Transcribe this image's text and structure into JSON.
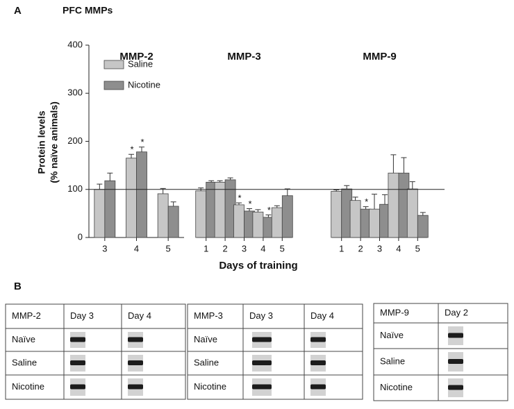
{
  "panel_a_label": "A",
  "panel_b_label": "B",
  "chart_data": {
    "type": "bar",
    "title": "PFC MMPs",
    "ylabel": [
      "Protein levels",
      "(% naïve animals)"
    ],
    "xlabel": "Days of training",
    "ylim": [
      0,
      400
    ],
    "yticks": [
      0,
      100,
      200,
      300,
      400
    ],
    "reference_line": 100,
    "sig_label": "*",
    "legend": [
      {
        "name": "Saline",
        "color": "#c6c6c6"
      },
      {
        "name": "Nicotine",
        "color": "#8e8e8e"
      }
    ],
    "groups": [
      {
        "name": "MMP-2",
        "categories": [
          "3",
          "4",
          "5"
        ],
        "series": [
          {
            "values": [
              100,
              165,
              91
            ],
            "errors": [
              11,
              8,
              11
            ],
            "significant": [
              false,
              true,
              false
            ]
          },
          {
            "values": [
              118,
              178,
              65
            ],
            "errors": [
              16,
              10,
              9
            ],
            "significant": [
              false,
              true,
              false
            ]
          }
        ]
      },
      {
        "name": "MMP-3",
        "categories": [
          "1",
          "2",
          "3",
          "4",
          "5"
        ],
        "series": [
          {
            "values": [
              97,
              115,
              68,
              53,
              62
            ],
            "errors": [
              6,
              3,
              4,
              5,
              4
            ],
            "significant": [
              false,
              false,
              true,
              false,
              false
            ]
          },
          {
            "values": [
              115,
              120,
              55,
              42,
              87
            ],
            "errors": [
              3,
              4,
              5,
              5,
              14
            ],
            "significant": [
              false,
              false,
              true,
              true,
              false
            ]
          }
        ]
      },
      {
        "name": "MMP-9",
        "categories": [
          "1",
          "2",
          "3",
          "4",
          "5"
        ],
        "series": [
          {
            "values": [
              96,
              77,
              59,
              134,
              101
            ],
            "errors": [
              3,
              7,
              31,
              38,
              15
            ],
            "significant": [
              false,
              false,
              false,
              false,
              false
            ]
          },
          {
            "values": [
              101,
              59,
              69,
              134,
              46
            ],
            "errors": [
              7,
              5,
              20,
              32,
              6
            ],
            "significant": [
              false,
              true,
              false,
              false,
              false
            ]
          }
        ]
      }
    ]
  },
  "tables": [
    {
      "header": [
        "MMP-2",
        "Day 3",
        "Day 4"
      ],
      "rows": [
        "Naïve",
        "Saline",
        "Nicotine"
      ]
    },
    {
      "header": [
        "MMP-3",
        "Day 3",
        "Day 4"
      ],
      "rows": [
        "Naïve",
        "Saline",
        "Nicotine"
      ]
    },
    {
      "header": [
        "MMP-9",
        "Day 2"
      ],
      "rows": [
        "Naïve",
        "Saline",
        "Nicotine"
      ]
    }
  ]
}
